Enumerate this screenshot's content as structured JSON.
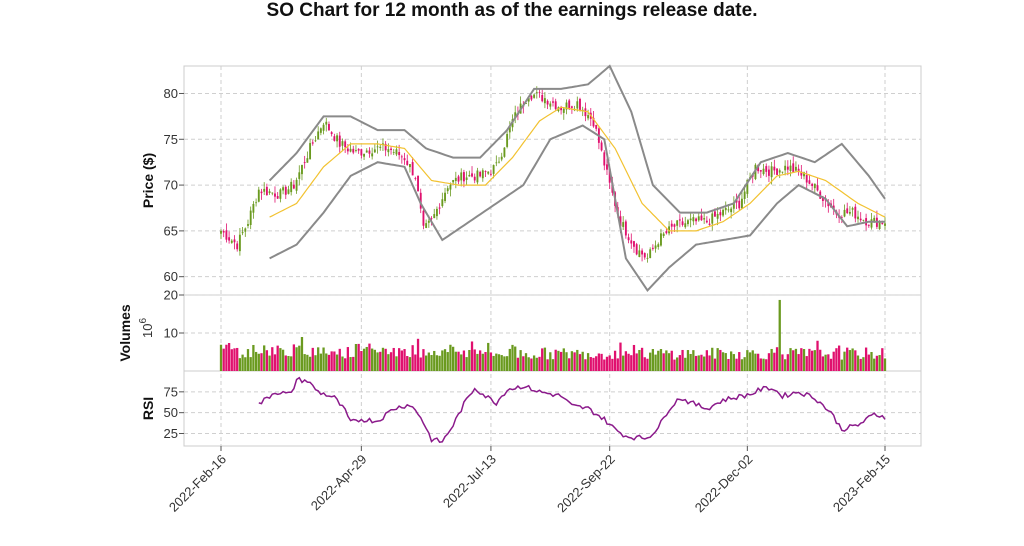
{
  "chart_data": {
    "type": "candlestick",
    "title": "SO Chart for 12 month as of the earnings release date.",
    "x_ticks": [
      "2022-Feb-16",
      "2022-Apr-29",
      "2022-Jul-13",
      "2022-Sep-22",
      "2022-Dec-02",
      "2023-Feb-15"
    ],
    "colors": {
      "up": "#6a9a1f",
      "down": "#e0106e",
      "ma": "#f2c230",
      "bands": "#8a8a8a",
      "rsi": "#8b1a8b"
    },
    "grid": true,
    "panels": {
      "price": {
        "ylabel": "Price ($)",
        "ylim": [
          58,
          83
        ],
        "yticks": [
          "60",
          "65",
          "70",
          "75",
          "80"
        ],
        "close_anchors": [
          [
            0,
            65
          ],
          [
            6,
            63.5
          ],
          [
            10,
            66
          ],
          [
            14,
            69.5
          ],
          [
            22,
            69
          ],
          [
            27,
            70
          ],
          [
            33,
            74
          ],
          [
            38,
            77
          ],
          [
            44,
            74.5
          ],
          [
            50,
            73.5
          ],
          [
            56,
            74
          ],
          [
            62,
            74
          ],
          [
            68,
            73
          ],
          [
            72,
            71
          ],
          [
            75,
            65
          ],
          [
            78,
            66
          ],
          [
            84,
            70
          ],
          [
            90,
            71
          ],
          [
            96,
            71
          ],
          [
            102,
            72
          ],
          [
            108,
            77
          ],
          [
            114,
            80
          ],
          [
            120,
            79.5
          ],
          [
            126,
            78.5
          ],
          [
            132,
            79
          ],
          [
            138,
            77
          ],
          [
            144,
            70
          ],
          [
            148,
            66
          ],
          [
            154,
            63
          ],
          [
            158,
            62
          ],
          [
            162,
            64
          ],
          [
            168,
            65.5
          ],
          [
            174,
            66
          ],
          [
            180,
            66
          ],
          [
            186,
            67
          ],
          [
            192,
            68
          ],
          [
            198,
            72
          ],
          [
            204,
            71.5
          ],
          [
            210,
            72
          ],
          [
            216,
            71
          ],
          [
            222,
            69
          ],
          [
            228,
            67
          ],
          [
            234,
            67
          ],
          [
            240,
            66
          ],
          [
            246,
            66
          ]
        ],
        "ma20_anchors": [
          [
            18,
            66.5
          ],
          [
            28,
            68
          ],
          [
            38,
            72
          ],
          [
            48,
            74.5
          ],
          [
            58,
            74.5
          ],
          [
            68,
            74
          ],
          [
            78,
            70.5
          ],
          [
            88,
            70
          ],
          [
            98,
            70
          ],
          [
            108,
            73
          ],
          [
            118,
            77
          ],
          [
            126,
            78.5
          ],
          [
            136,
            78
          ],
          [
            146,
            74
          ],
          [
            156,
            68
          ],
          [
            166,
            65
          ],
          [
            176,
            65
          ],
          [
            186,
            66
          ],
          [
            196,
            68
          ],
          [
            206,
            71
          ],
          [
            214,
            71.5
          ],
          [
            224,
            70.5
          ],
          [
            236,
            68
          ],
          [
            246,
            66.5
          ]
        ],
        "upper_band_anchors": [
          [
            18,
            70.5
          ],
          [
            28,
            73.5
          ],
          [
            38,
            77.5
          ],
          [
            48,
            77.5
          ],
          [
            58,
            76
          ],
          [
            68,
            76
          ],
          [
            76,
            74
          ],
          [
            86,
            73
          ],
          [
            96,
            73
          ],
          [
            106,
            76
          ],
          [
            116,
            80.5
          ],
          [
            126,
            80.5
          ],
          [
            136,
            81
          ],
          [
            144,
            83
          ],
          [
            152,
            78
          ],
          [
            160,
            70
          ],
          [
            170,
            67
          ],
          [
            180,
            67
          ],
          [
            190,
            68
          ],
          [
            200,
            72.5
          ],
          [
            210,
            73.5
          ],
          [
            220,
            72.5
          ],
          [
            230,
            74.5
          ],
          [
            240,
            71
          ],
          [
            246,
            68.5
          ]
        ],
        "lower_band_anchors": [
          [
            18,
            62
          ],
          [
            28,
            63.5
          ],
          [
            38,
            67
          ],
          [
            48,
            71
          ],
          [
            58,
            72.5
          ],
          [
            68,
            72
          ],
          [
            74,
            68
          ],
          [
            82,
            64
          ],
          [
            92,
            66
          ],
          [
            102,
            68
          ],
          [
            112,
            70
          ],
          [
            122,
            75
          ],
          [
            134,
            76.5
          ],
          [
            142,
            75
          ],
          [
            150,
            62
          ],
          [
            158,
            58.5
          ],
          [
            166,
            61
          ],
          [
            176,
            63.5
          ],
          [
            186,
            64
          ],
          [
            196,
            64.5
          ],
          [
            206,
            68
          ],
          [
            214,
            70
          ],
          [
            224,
            68.5
          ],
          [
            232,
            65.5
          ],
          [
            240,
            66
          ],
          [
            246,
            66
          ]
        ]
      },
      "volume": {
        "ylabel": "Volumes",
        "exponent": "10",
        "exponent_power": "6",
        "ylim": [
          0,
          20
        ],
        "yticks": [
          "10",
          "20"
        ],
        "spike": {
          "index": 207,
          "value": 18.7
        }
      },
      "rsi": {
        "ylabel": "RSI",
        "ylim": [
          10,
          100
        ],
        "yticks": [
          "25",
          "50",
          "75"
        ],
        "anchors": [
          [
            14,
            60
          ],
          [
            20,
            75
          ],
          [
            26,
            72
          ],
          [
            28,
            90
          ],
          [
            32,
            88
          ],
          [
            36,
            75
          ],
          [
            42,
            68
          ],
          [
            46,
            52
          ],
          [
            48,
            38
          ],
          [
            52,
            42
          ],
          [
            58,
            40
          ],
          [
            64,
            55
          ],
          [
            70,
            60
          ],
          [
            74,
            45
          ],
          [
            78,
            18
          ],
          [
            82,
            15
          ],
          [
            86,
            35
          ],
          [
            90,
            60
          ],
          [
            94,
            80
          ],
          [
            98,
            70
          ],
          [
            102,
            62
          ],
          [
            106,
            78
          ],
          [
            112,
            82
          ],
          [
            118,
            75
          ],
          [
            126,
            70
          ],
          [
            130,
            58
          ],
          [
            136,
            55
          ],
          [
            142,
            42
          ],
          [
            146,
            30
          ],
          [
            150,
            22
          ],
          [
            154,
            20
          ],
          [
            158,
            20
          ],
          [
            162,
            32
          ],
          [
            166,
            55
          ],
          [
            170,
            68
          ],
          [
            174,
            62
          ],
          [
            180,
            55
          ],
          [
            186,
            65
          ],
          [
            190,
            68
          ],
          [
            196,
            72
          ],
          [
            200,
            78
          ],
          [
            204,
            80
          ],
          [
            208,
            70
          ],
          [
            214,
            75
          ],
          [
            220,
            68
          ],
          [
            226,
            50
          ],
          [
            230,
            30
          ],
          [
            236,
            35
          ],
          [
            242,
            48
          ],
          [
            246,
            45
          ]
        ]
      }
    }
  }
}
